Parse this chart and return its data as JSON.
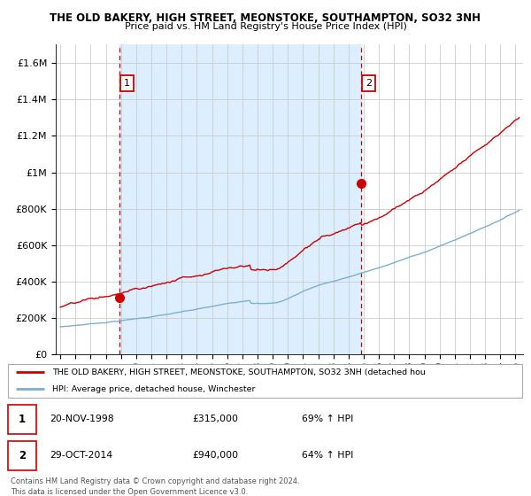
{
  "title1": "THE OLD BAKERY, HIGH STREET, MEONSTOKE, SOUTHAMPTON, SO32 3NH",
  "title2": "Price paid vs. HM Land Registry's House Price Index (HPI)",
  "ylim": [
    0,
    1700000
  ],
  "xlim_start": 1994.7,
  "xlim_end": 2025.5,
  "red_line_color": "#cc0000",
  "blue_line_color": "#7ab0d4",
  "shade_color": "#ddeeff",
  "sale1_x": 1998.88,
  "sale1_y": 315000,
  "sale2_x": 2014.83,
  "sale2_y": 940000,
  "legend_line1": "THE OLD BAKERY, HIGH STREET, MEONSTOKE, SOUTHAMPTON, SO32 3NH (detached hou",
  "legend_line2": "HPI: Average price, detached house, Winchester",
  "yticks": [
    0,
    200000,
    400000,
    600000,
    800000,
    1000000,
    1200000,
    1400000,
    1600000
  ],
  "ytick_labels": [
    "£0",
    "£200K",
    "£400K",
    "£600K",
    "£800K",
    "£1M",
    "£1.2M",
    "£1.4M",
    "£1.6M"
  ],
  "xticks": [
    1995,
    1996,
    1997,
    1998,
    1999,
    2000,
    2001,
    2002,
    2003,
    2004,
    2005,
    2006,
    2007,
    2008,
    2009,
    2010,
    2011,
    2012,
    2013,
    2014,
    2015,
    2016,
    2017,
    2018,
    2019,
    2020,
    2021,
    2022,
    2023,
    2024,
    2025
  ],
  "footnote": "Contains HM Land Registry data © Crown copyright and database right 2024.\nThis data is licensed under the Open Government Licence v3.0."
}
